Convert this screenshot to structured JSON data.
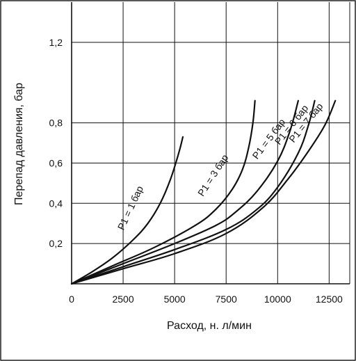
{
  "chart_data": {
    "type": "line",
    "title": "",
    "xlabel": "Расход, н. л/мин",
    "ylabel": "Перепад давления, бар",
    "xlim": [
      0,
      13500
    ],
    "ylim": [
      0,
      1.4
    ],
    "grid": true,
    "legend": "none",
    "x_ticks": [
      {
        "value": 0,
        "label": "0"
      },
      {
        "value": 2500,
        "label": "2500"
      },
      {
        "value": 5000,
        "label": "5000"
      },
      {
        "value": 7500,
        "label": "7500"
      },
      {
        "value": 10000,
        "label": "10000"
      },
      {
        "value": 12500,
        "label": "12500"
      }
    ],
    "y_ticks": [
      {
        "value": 0.2,
        "label": "0,2"
      },
      {
        "value": 0.4,
        "label": "0,4"
      },
      {
        "value": 0.6,
        "label": "0,6"
      },
      {
        "value": 0.8,
        "label": "0,8"
      },
      {
        "value": 1.2,
        "label": "1,2"
      }
    ],
    "series": [
      {
        "name": "P1 = 1 бар",
        "points": [
          [
            0,
            0
          ],
          [
            1000,
            0.06
          ],
          [
            2000,
            0.13
          ],
          [
            3000,
            0.22
          ],
          [
            3700,
            0.3
          ],
          [
            4300,
            0.4
          ],
          [
            4800,
            0.52
          ],
          [
            5200,
            0.65
          ],
          [
            5400,
            0.73
          ]
        ]
      },
      {
        "name": "P1 = 3 бар",
        "points": [
          [
            0,
            0
          ],
          [
            2000,
            0.09
          ],
          [
            4000,
            0.18
          ],
          [
            6000,
            0.29
          ],
          [
            7000,
            0.37
          ],
          [
            7800,
            0.47
          ],
          [
            8300,
            0.57
          ],
          [
            8600,
            0.68
          ],
          [
            8800,
            0.8
          ],
          [
            8900,
            0.91
          ]
        ]
      },
      {
        "name": "P1 = 5 бар",
        "points": [
          [
            0,
            0
          ],
          [
            2500,
            0.1
          ],
          [
            5000,
            0.2
          ],
          [
            7000,
            0.29
          ],
          [
            8000,
            0.36
          ],
          [
            9000,
            0.46
          ],
          [
            10000,
            0.61
          ],
          [
            10600,
            0.76
          ],
          [
            11000,
            0.91
          ]
        ]
      },
      {
        "name": "P1 = 6 бар",
        "points": [
          [
            0,
            0
          ],
          [
            2500,
            0.085
          ],
          [
            5000,
            0.17
          ],
          [
            7500,
            0.27
          ],
          [
            9000,
            0.37
          ],
          [
            10000,
            0.48
          ],
          [
            11000,
            0.65
          ],
          [
            11500,
            0.79
          ],
          [
            11800,
            0.91
          ]
        ]
      },
      {
        "name": "P1 = 7 бар",
        "points": [
          [
            0,
            0
          ],
          [
            2500,
            0.075
          ],
          [
            5000,
            0.15
          ],
          [
            7500,
            0.25
          ],
          [
            9300,
            0.38
          ],
          [
            10500,
            0.52
          ],
          [
            11500,
            0.66
          ],
          [
            12300,
            0.79
          ],
          [
            12800,
            0.91
          ]
        ]
      }
    ],
    "curve_labels": [
      {
        "text": "P1 = 1 бар",
        "x": 3000,
        "y": 0.37,
        "angle": -65
      },
      {
        "text": "P1 = 3 бар",
        "x": 7000,
        "y": 0.53,
        "angle": -57
      },
      {
        "text": "P1 = 5 бар",
        "x": 9700,
        "y": 0.71,
        "angle": -53
      },
      {
        "text": "P1 = 6 бар",
        "x": 10800,
        "y": 0.78,
        "angle": -52
      },
      {
        "text": "P1 = 7 бар",
        "x": 11500,
        "y": 0.79,
        "angle": -51
      }
    ]
  }
}
